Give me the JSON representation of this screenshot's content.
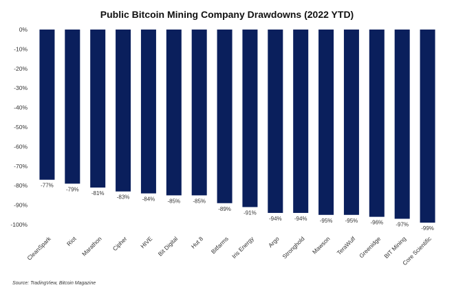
{
  "chart_data": {
    "type": "bar",
    "title": "Public Bitcoin Mining Company Drawdowns (2022 YTD)",
    "source": "Source: TradingView, Bitcoin Magazine",
    "categories": [
      "CleanSpark",
      "Riot",
      "Marathon",
      "Cipher",
      "HIVE",
      "Bit Digital",
      "Hut 8",
      "Bitfarms",
      "Iris Energy",
      "Argo",
      "Stronghold",
      "Mawson",
      "TeraWulf",
      "Greenidge",
      "BIT Mining",
      "Core Scientific"
    ],
    "values": [
      -77,
      -79,
      -81,
      -83,
      -84,
      -85,
      -85,
      -89,
      -91,
      -94,
      -94,
      -95,
      -95,
      -96,
      -97,
      -99
    ],
    "data_labels": [
      "-77%",
      "-79%",
      "-81%",
      "-83%",
      "-84%",
      "-85%",
      "-85%",
      "-89%",
      "-91%",
      "-94%",
      "-94%",
      "-95%",
      "-95%",
      "-96%",
      "-97%",
      "-99%"
    ],
    "yticks": [
      "0%",
      "-10%",
      "-20%",
      "-30%",
      "-40%",
      "-50%",
      "-60%",
      "-70%",
      "-80%",
      "-90%",
      "-100%"
    ],
    "ylim": [
      -100,
      0
    ],
    "grid": false,
    "bar_color": "#0a1f5c"
  }
}
